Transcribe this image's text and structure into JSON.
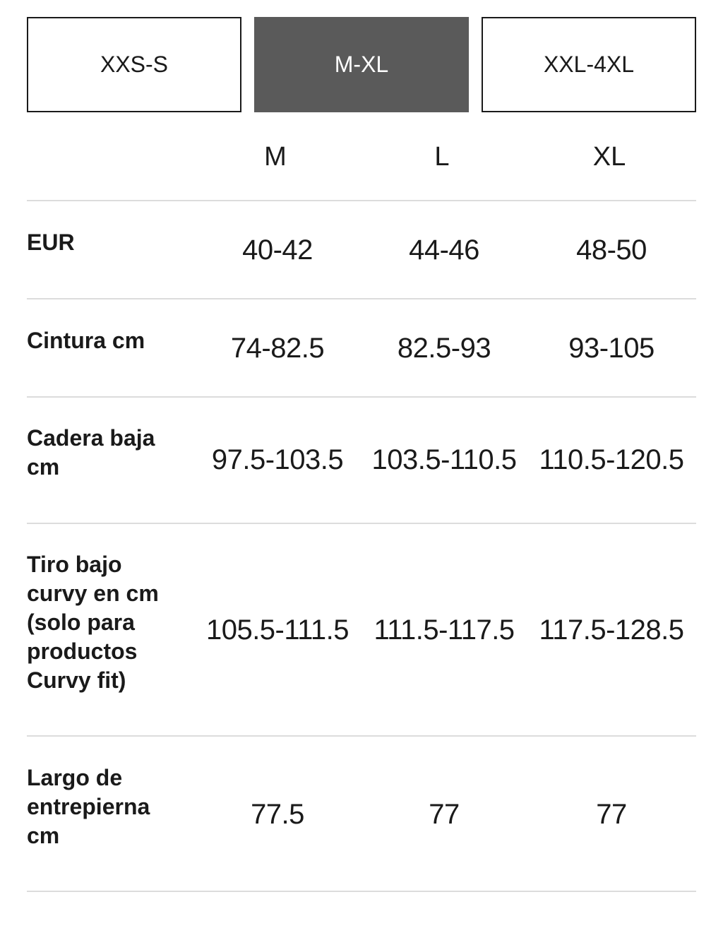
{
  "size_groups": [
    {
      "label": "XXS-S",
      "selected": false
    },
    {
      "label": "M-XL",
      "selected": true
    },
    {
      "label": "XXL-4XL",
      "selected": false
    }
  ],
  "columns": [
    "M",
    "L",
    "XL"
  ],
  "rows": [
    {
      "label": "EUR",
      "values": [
        "40-42",
        "44-46",
        "48-50"
      ]
    },
    {
      "label": "Cintura cm",
      "values": [
        "74-82.5",
        "82.5-93",
        "93-105"
      ]
    },
    {
      "label": "Cadera baja cm",
      "values": [
        "97.5-103.5",
        "103.5-110.5",
        "110.5-120.5"
      ]
    },
    {
      "label": "Tiro bajo curvy en cm (solo para productos Curvy fit)",
      "values": [
        "105.5-111.5",
        "111.5-117.5",
        "117.5-128.5"
      ]
    },
    {
      "label": "Largo de entrepierna cm",
      "values": [
        "77.5",
        "77",
        "77"
      ]
    }
  ],
  "colors": {
    "active_tab_bg": "#5a5a5a",
    "text": "#1a1a1a",
    "divider": "#dcdcdc"
  }
}
